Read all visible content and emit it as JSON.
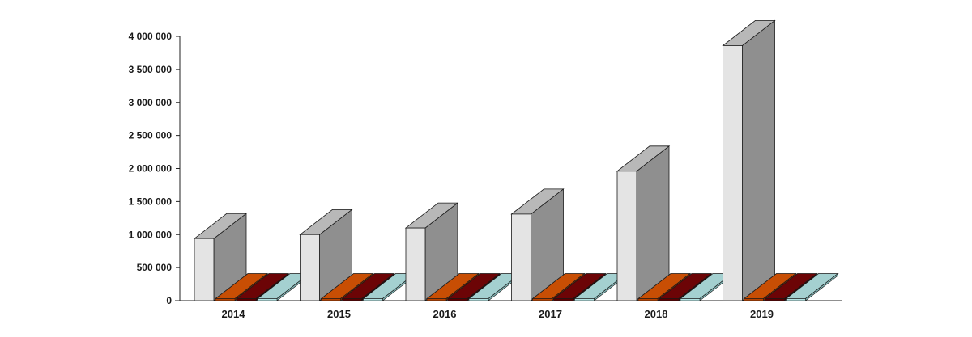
{
  "chart_data": {
    "type": "bar",
    "title": "",
    "xlabel": "",
    "ylabel": "",
    "categories": [
      "2014",
      "2015",
      "2016",
      "2017",
      "2018",
      "2019"
    ],
    "ylim": [
      0,
      4000000
    ],
    "yticks": [
      {
        "value": 0,
        "label": "0"
      },
      {
        "value": 500000,
        "label": "500 000"
      },
      {
        "value": 1000000,
        "label": "1 000 000"
      },
      {
        "value": 1500000,
        "label": "1 500 000"
      },
      {
        "value": 2000000,
        "label": "2 000 000"
      },
      {
        "value": 2500000,
        "label": "2 500 000"
      },
      {
        "value": 3000000,
        "label": "3 000 000"
      },
      {
        "value": 3500000,
        "label": "3 500 000"
      },
      {
        "value": 4000000,
        "label": "4 000 000"
      }
    ],
    "grid": false,
    "legend": "none",
    "style": "3d-bars",
    "series": [
      {
        "values": [
          940000,
          1000000,
          1100000,
          1310000,
          1960000,
          3860000
        ],
        "color_front": "#e4e4e4",
        "color_side": "#8f8f8f",
        "color_top": "#b8b8b8"
      },
      {
        "values": [
          0,
          0,
          0,
          0,
          0,
          0
        ],
        "color_front": "#b84200",
        "color_side": "#8a3000",
        "color_top": "#c84e04"
      },
      {
        "values": [
          0,
          0,
          0,
          0,
          0,
          0
        ],
        "color_front": "#5a0000",
        "color_side": "#3c0000",
        "color_top": "#6c0406"
      },
      {
        "values": [
          0,
          0,
          0,
          0,
          0,
          0
        ],
        "color_front": "#b4e4e4",
        "color_side": "#7fb3b3",
        "color_top": "#a4d0d0"
      }
    ]
  }
}
